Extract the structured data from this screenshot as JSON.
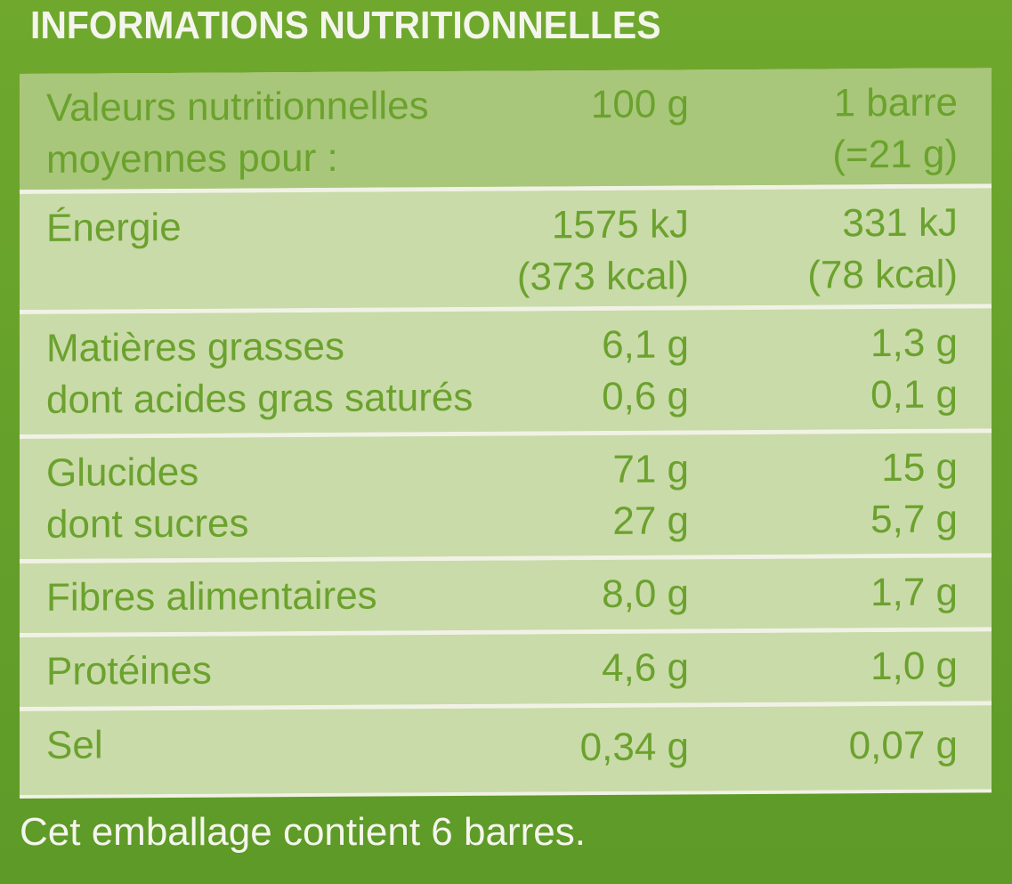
{
  "title": "INFORMATIONS NUTRITIONNELLES",
  "header": {
    "label_line1": "Valeurs nutritionnelles",
    "label_line2": "moyennes pour :",
    "col_100g": "100 g",
    "col_bar_line1": "1 barre",
    "col_bar_line2": "(=21 g)"
  },
  "rows": [
    {
      "label1": "Énergie",
      "label2": "",
      "v100_1": "1575 kJ",
      "v100_2": "(373 kcal)",
      "vbar_1": "331 kJ",
      "vbar_2": "(78 kcal)"
    },
    {
      "label1": "Matières grasses",
      "label2": "dont acides gras saturés",
      "v100_1": "6,1 g",
      "v100_2": "0,6 g",
      "vbar_1": "1,3 g",
      "vbar_2": "0,1 g"
    },
    {
      "label1": "Glucides",
      "label2": "dont sucres",
      "v100_1": "71 g",
      "v100_2": "27 g",
      "vbar_1": "15 g",
      "vbar_2": "5,7 g"
    },
    {
      "label1": "Fibres alimentaires",
      "label2": "",
      "v100_1": "8,0 g",
      "v100_2": "",
      "vbar_1": "1,7 g",
      "vbar_2": ""
    },
    {
      "label1": "Protéines",
      "label2": "",
      "v100_1": "4,6 g",
      "v100_2": "",
      "vbar_1": "1,0 g",
      "vbar_2": ""
    },
    {
      "label1": "Sel",
      "label2": "",
      "v100_1": "0,34 g",
      "v100_2": "",
      "vbar_1": "0,07 g",
      "vbar_2": ""
    }
  ],
  "footer": "Cet emballage contient 6 barres.",
  "colors": {
    "background": "#6aa52a",
    "row_bg": "#c9dba8",
    "header_bg": "#a8c77a",
    "text": "#6ba22e",
    "title_text": "#f4f5ec"
  }
}
